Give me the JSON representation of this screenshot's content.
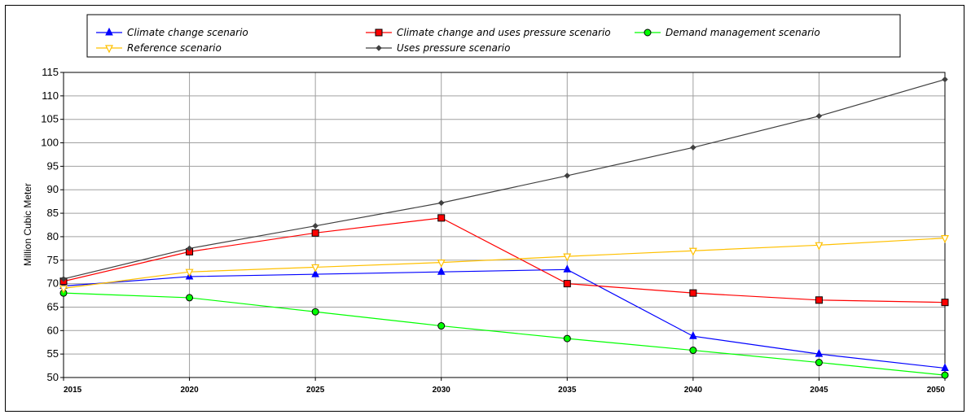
{
  "chart_data": {
    "type": "line",
    "ylabel": "Million Cubic Meter",
    "xlabel": "",
    "x": [
      2015,
      2020,
      2025,
      2030,
      2035,
      2040,
      2045,
      2050
    ],
    "ylim": [
      50,
      115
    ],
    "yticks": [
      50,
      55,
      60,
      65,
      70,
      75,
      80,
      85,
      90,
      95,
      100,
      105,
      110,
      115
    ],
    "grid": true,
    "legend": "top",
    "series": [
      {
        "name": "Climate change  scenario",
        "color": "#0000ff",
        "marker": "triangle-up",
        "values": [
          69.5,
          71.5,
          72,
          72.5,
          73,
          58.8,
          55,
          52
        ]
      },
      {
        "name": "Climate change and uses pressure scenario",
        "color": "#ff0000",
        "marker": "square",
        "values": [
          70.5,
          76.8,
          80.8,
          84,
          70,
          68,
          66.5,
          66
        ]
      },
      {
        "name": "Demand management scenario",
        "color": "#00ff00",
        "marker": "circle",
        "values": [
          68,
          67,
          64,
          61,
          58.3,
          55.8,
          53.2,
          50.5
        ]
      },
      {
        "name": "Reference scenario",
        "color": "#ffc000",
        "marker": "triangle-down",
        "values": [
          69,
          72.5,
          73.5,
          74.5,
          75.8,
          77,
          78.2,
          79.7
        ]
      },
      {
        "name": "Uses pressure scenario",
        "color": "#404040",
        "marker": "diamond",
        "values": [
          71,
          77.5,
          82.3,
          87.2,
          93,
          99,
          105.7,
          113.5
        ]
      }
    ]
  }
}
